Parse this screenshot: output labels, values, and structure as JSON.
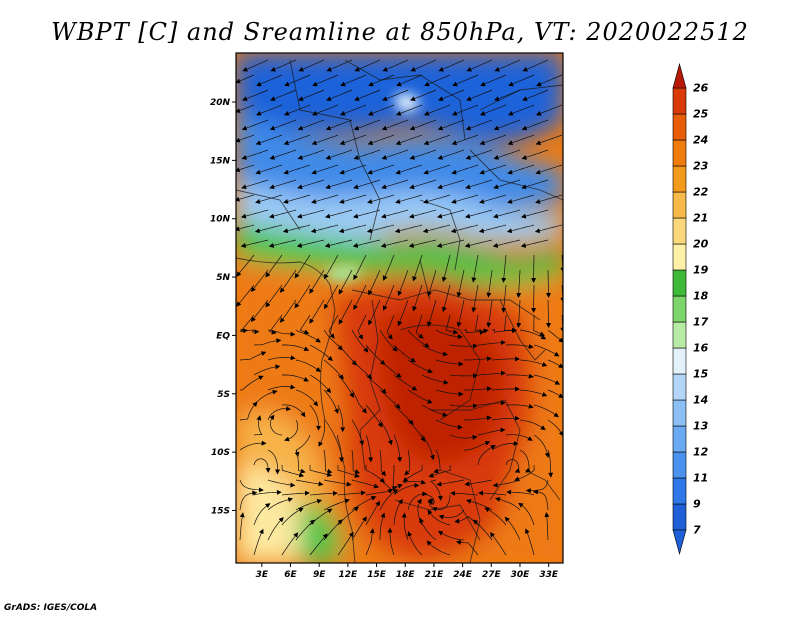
{
  "title": "WBPT [C] and Sreamline at 850hPa, VT: 2020022512",
  "credit": "GrADS: IGES/COLA",
  "map": {
    "lat_labels": [
      "20N",
      "15N",
      "10N",
      "5N",
      "EQ",
      "5S",
      "10S",
      "15S"
    ],
    "lat_values": [
      20,
      15,
      10,
      5,
      0,
      -5,
      -10,
      -15
    ],
    "lon_labels": [
      "3E",
      "6E",
      "9E",
      "12E",
      "15E",
      "18E",
      "21E",
      "24E",
      "27E",
      "30E",
      "33E"
    ],
    "lon_values": [
      3,
      6,
      9,
      12,
      15,
      18,
      21,
      24,
      27,
      30,
      33
    ],
    "lon_range": [
      0.3,
      34.5
    ],
    "lat_range": [
      -19.5,
      24.2
    ]
  },
  "colorbar": {
    "labels": [
      "7",
      "9",
      "11",
      "12",
      "13",
      "14",
      "15",
      "16",
      "17",
      "18",
      "19",
      "20",
      "21",
      "22",
      "23",
      "24",
      "25",
      "26"
    ],
    "colors": [
      "#1f5fd8",
      "#2f78e8",
      "#4a92ee",
      "#6aaaf2",
      "#8cc0f5",
      "#b3d6f8",
      "#e3f2fa",
      "#b8eca6",
      "#7cd66b",
      "#3eb93a",
      "#fff0a8",
      "#fbd87c",
      "#f6b94a",
      "#f39a1d",
      "#ef7d0d",
      "#e95d08",
      "#d93a08",
      "#b81806"
    ],
    "under_color": "#1f5fd8",
    "over_color": "#b81806"
  },
  "colors": {
    "blue_deep": "#1f62d9",
    "blue": "#3f8ae8",
    "blue_light": "#9ccaf5",
    "white_blue": "#e3f1fa",
    "green": "#4cc44a",
    "green_light": "#a8e69a",
    "yellow": "#fde9a0",
    "orange_light": "#f7b34a",
    "orange": "#ee7a12",
    "red": "#d93a08",
    "red_dark": "#bf2206"
  }
}
